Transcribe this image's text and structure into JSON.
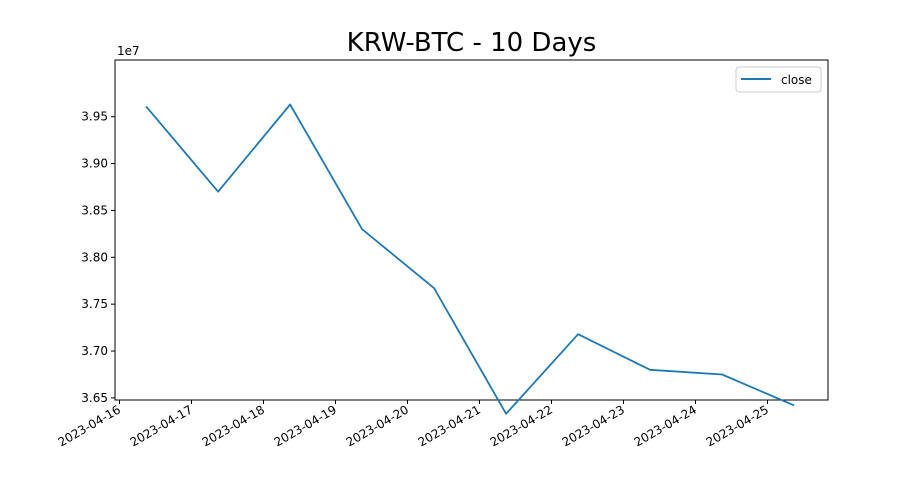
{
  "chart_data": {
    "type": "line",
    "title": "KRW-BTC - 10 Days",
    "xlabel": "",
    "ylabel": "",
    "y_offset_label": "1e7",
    "x_dates": [
      "2023-04-16",
      "2023-04-17",
      "2023-04-18",
      "2023-04-19",
      "2023-04-20",
      "2023-04-21",
      "2023-04-22",
      "2023-04-23",
      "2023-04-24",
      "2023-04-25"
    ],
    "x_tick_labels": [
      "2023-04-16",
      "2023-04-17",
      "2023-04-18",
      "2023-04-19",
      "2023-04-20",
      "2023-04-21",
      "2023-04-22",
      "2023-04-23",
      "2023-04-24",
      "2023-04-25"
    ],
    "y_ticks": [
      3.65,
      3.7,
      3.75,
      3.8,
      3.85,
      3.9,
      3.95
    ],
    "y_tick_labels": [
      "3.65",
      "3.70",
      "3.75",
      "3.80",
      "3.85",
      "3.90",
      "3.95"
    ],
    "ylim": [
      3.62,
      3.98
    ],
    "xlim": [
      "2023-04-16",
      "2023-04-25"
    ],
    "series": [
      {
        "name": "close",
        "color": "#1f77b4",
        "x": [
          "2023-04-16",
          "2023-04-17",
          "2023-04-18",
          "2023-04-19",
          "2023-04-20",
          "2023-04-21",
          "2023-04-22",
          "2023-04-23",
          "2023-04-24",
          "2023-04-25"
        ],
        "values": [
          3.961,
          3.87,
          3.963,
          3.83,
          3.767,
          3.633,
          3.718,
          3.68,
          3.675,
          3.642
        ]
      }
    ],
    "legend": {
      "position": "top-right",
      "entries": [
        "close"
      ]
    },
    "grid": false
  }
}
